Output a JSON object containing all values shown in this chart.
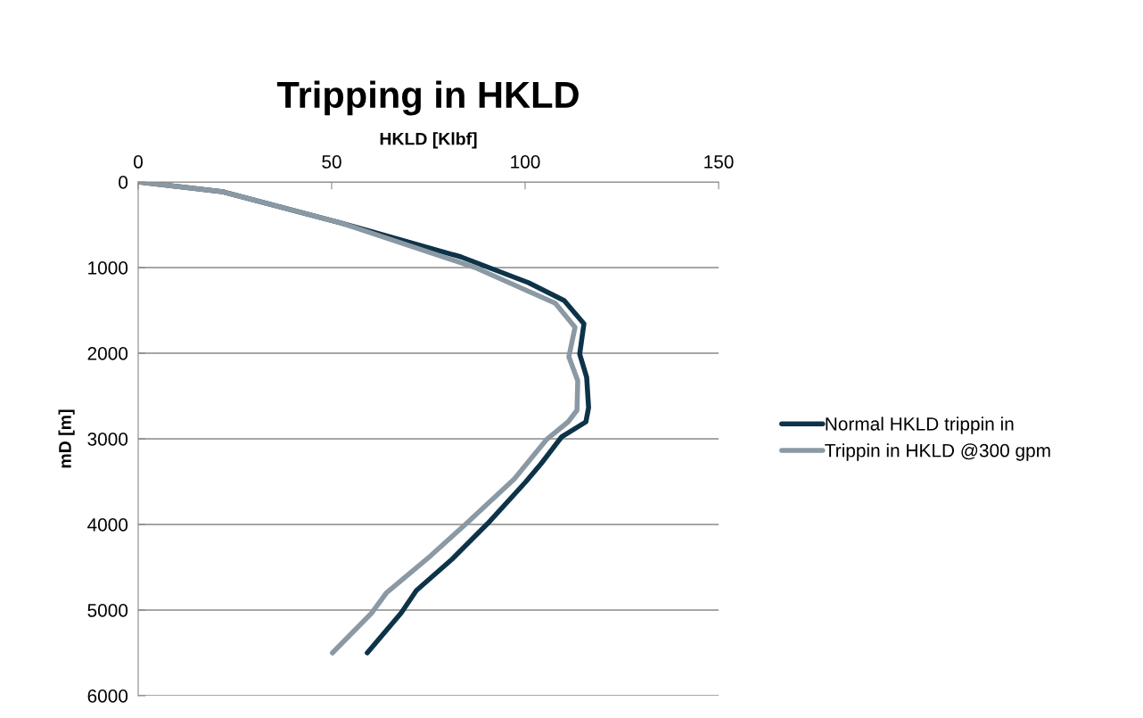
{
  "chart_data": {
    "type": "line",
    "title": "Tripping in HKLD",
    "xlabel": "HKLD [Klbf]",
    "ylabel": "mD [m]",
    "xlim": [
      0,
      150
    ],
    "xticks": [
      0,
      50,
      100,
      150
    ],
    "ylim": [
      6000,
      0
    ],
    "yticks": [
      0,
      1000,
      2000,
      3000,
      4000,
      5000,
      6000
    ],
    "grid": "y",
    "legend": "right",
    "marker": "none",
    "line_style": "solid",
    "series": [
      {
        "name": "Normal HKLD trippin in",
        "color": "#0d3349",
        "x": [
          0,
          21.9,
          52.5,
          83.4,
          100.9,
          110.1,
          115.2,
          114.1,
          115.9,
          116.4,
          115.7,
          109.4,
          104.1,
          100.2,
          90.3,
          81.1,
          71.9,
          68.0,
          59.2
        ],
        "values": [
          0,
          115,
          480,
          875,
          1177,
          1385,
          1656,
          2010,
          2281,
          2635,
          2802,
          2979,
          3292,
          3500,
          3990,
          4406,
          4771,
          5031,
          5500
        ]
      },
      {
        "name": "Trippin in HKLD @300 gpm",
        "color": "#8a99a3",
        "x": [
          0,
          21.9,
          52.5,
          87.1,
          107.8,
          112.9,
          111.3,
          113.6,
          113.4,
          111.1,
          105.5,
          97.2,
          84.8,
          75.6,
          64.1,
          60.4,
          50.2
        ],
        "values": [
          0,
          115,
          480,
          1000,
          1417,
          1698,
          2042,
          2323,
          2667,
          2802,
          3010,
          3469,
          3990,
          4365,
          4802,
          5031,
          5500
        ]
      }
    ]
  }
}
